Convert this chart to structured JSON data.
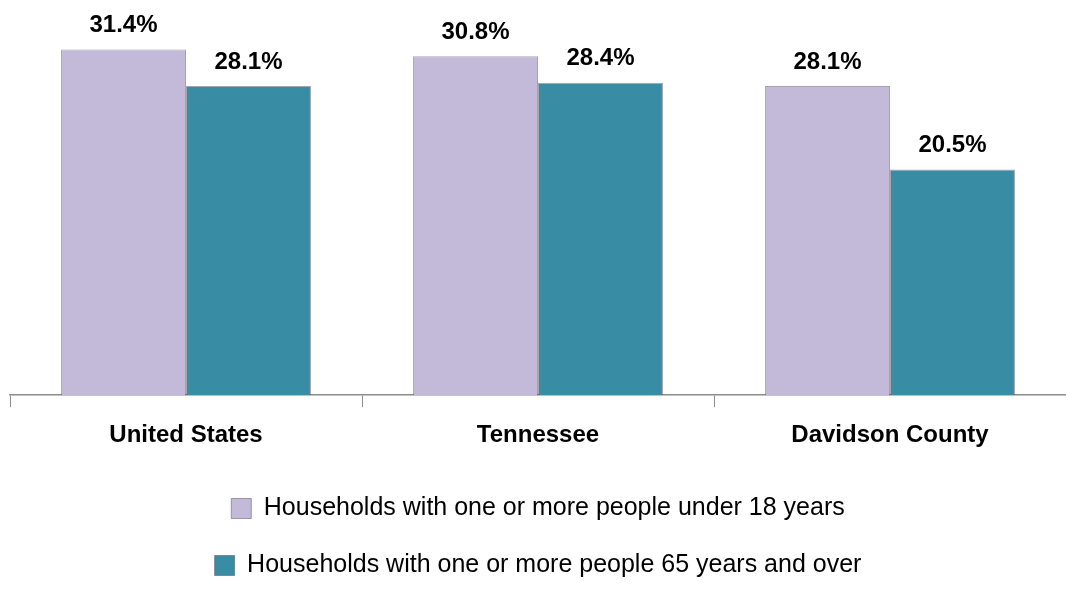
{
  "chart_data": {
    "type": "bar",
    "categories": [
      "United States",
      "Tennessee",
      "Davidson County"
    ],
    "series": [
      {
        "name": "Households with one or more people under 18 years",
        "color": "#c3b9d9",
        "values": [
          31.4,
          30.8,
          28.1
        ],
        "value_labels": [
          "31.4%",
          "30.8%",
          "28.1%"
        ]
      },
      {
        "name": "Households with one or more people 65 years and over",
        "color": "#388ca4",
        "values": [
          28.1,
          28.4,
          20.5
        ],
        "value_labels": [
          "28.1%",
          "28.4%",
          "20.5%"
        ]
      }
    ],
    "legend": "bottom"
  }
}
